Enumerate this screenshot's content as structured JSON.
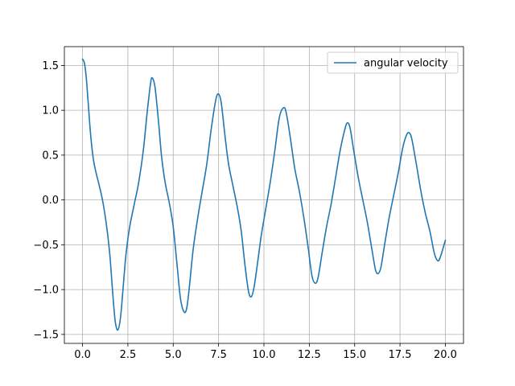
{
  "chart_data": {
    "type": "line",
    "title": "",
    "xlabel": "",
    "ylabel": "",
    "xlim": [
      -1.0,
      21.0
    ],
    "ylim": [
      -1.6,
      1.71
    ],
    "grid": true,
    "legend_position": "top-right",
    "x_ticks": [
      0.0,
      2.5,
      5.0,
      7.5,
      10.0,
      12.5,
      15.0,
      17.5,
      20.0
    ],
    "x_tick_labels": [
      "0.0",
      "2.5",
      "5.0",
      "7.5",
      "10.0",
      "12.5",
      "15.0",
      "17.5",
      "20.0"
    ],
    "y_ticks": [
      -1.5,
      -1.0,
      -0.5,
      0.0,
      0.5,
      1.0,
      1.5
    ],
    "y_tick_labels": [
      "−1.5",
      "−1.0",
      "−0.5",
      "0.0",
      "0.5",
      "1.0",
      "1.5"
    ],
    "series": [
      {
        "name": "angular velocity",
        "color": "#1f77b4",
        "points": [
          [
            0.0,
            1.57
          ],
          [
            0.1,
            1.53
          ],
          [
            0.2,
            1.38
          ],
          [
            0.3,
            1.12
          ],
          [
            0.45,
            0.72
          ],
          [
            0.6,
            0.45
          ],
          [
            0.75,
            0.3
          ],
          [
            0.9,
            0.18
          ],
          [
            1.1,
            0.0
          ],
          [
            1.3,
            -0.25
          ],
          [
            1.5,
            -0.6
          ],
          [
            1.65,
            -1.0
          ],
          [
            1.8,
            -1.35
          ],
          [
            1.95,
            -1.45
          ],
          [
            2.1,
            -1.3
          ],
          [
            2.25,
            -0.95
          ],
          [
            2.4,
            -0.6
          ],
          [
            2.6,
            -0.3
          ],
          [
            2.85,
            -0.05
          ],
          [
            3.1,
            0.2
          ],
          [
            3.35,
            0.55
          ],
          [
            3.55,
            0.95
          ],
          [
            3.75,
            1.3
          ],
          [
            3.85,
            1.36
          ],
          [
            4.0,
            1.25
          ],
          [
            4.2,
            0.85
          ],
          [
            4.35,
            0.5
          ],
          [
            4.55,
            0.2
          ],
          [
            4.8,
            -0.05
          ],
          [
            5.0,
            -0.3
          ],
          [
            5.2,
            -0.7
          ],
          [
            5.4,
            -1.1
          ],
          [
            5.6,
            -1.25
          ],
          [
            5.75,
            -1.2
          ],
          [
            5.9,
            -0.95
          ],
          [
            6.1,
            -0.55
          ],
          [
            6.35,
            -0.2
          ],
          [
            6.6,
            0.1
          ],
          [
            6.85,
            0.4
          ],
          [
            7.1,
            0.8
          ],
          [
            7.35,
            1.12
          ],
          [
            7.5,
            1.18
          ],
          [
            7.65,
            1.08
          ],
          [
            7.85,
            0.72
          ],
          [
            8.05,
            0.4
          ],
          [
            8.3,
            0.15
          ],
          [
            8.55,
            -0.1
          ],
          [
            8.75,
            -0.35
          ],
          [
            8.95,
            -0.72
          ],
          [
            9.15,
            -1.02
          ],
          [
            9.3,
            -1.08
          ],
          [
            9.45,
            -0.98
          ],
          [
            9.65,
            -0.7
          ],
          [
            9.85,
            -0.4
          ],
          [
            10.1,
            -0.1
          ],
          [
            10.35,
            0.2
          ],
          [
            10.6,
            0.55
          ],
          [
            10.85,
            0.92
          ],
          [
            11.1,
            1.03
          ],
          [
            11.25,
            0.95
          ],
          [
            11.45,
            0.7
          ],
          [
            11.7,
            0.35
          ],
          [
            11.95,
            0.1
          ],
          [
            12.2,
            -0.2
          ],
          [
            12.45,
            -0.55
          ],
          [
            12.65,
            -0.85
          ],
          [
            12.85,
            -0.93
          ],
          [
            13.0,
            -0.85
          ],
          [
            13.2,
            -0.6
          ],
          [
            13.45,
            -0.3
          ],
          [
            13.7,
            -0.05
          ],
          [
            13.95,
            0.25
          ],
          [
            14.2,
            0.55
          ],
          [
            14.45,
            0.78
          ],
          [
            14.6,
            0.86
          ],
          [
            14.75,
            0.8
          ],
          [
            14.95,
            0.55
          ],
          [
            15.2,
            0.25
          ],
          [
            15.45,
            0.0
          ],
          [
            15.7,
            -0.25
          ],
          [
            15.95,
            -0.55
          ],
          [
            16.15,
            -0.78
          ],
          [
            16.3,
            -0.82
          ],
          [
            16.45,
            -0.75
          ],
          [
            16.65,
            -0.5
          ],
          [
            16.9,
            -0.2
          ],
          [
            17.15,
            0.05
          ],
          [
            17.4,
            0.3
          ],
          [
            17.65,
            0.58
          ],
          [
            17.85,
            0.72
          ],
          [
            18.0,
            0.75
          ],
          [
            18.15,
            0.68
          ],
          [
            18.4,
            0.4
          ],
          [
            18.65,
            0.1
          ],
          [
            18.9,
            -0.15
          ],
          [
            19.15,
            -0.35
          ],
          [
            19.4,
            -0.6
          ],
          [
            19.6,
            -0.68
          ],
          [
            19.75,
            -0.62
          ],
          [
            19.9,
            -0.52
          ],
          [
            20.0,
            -0.45
          ]
        ]
      }
    ]
  }
}
